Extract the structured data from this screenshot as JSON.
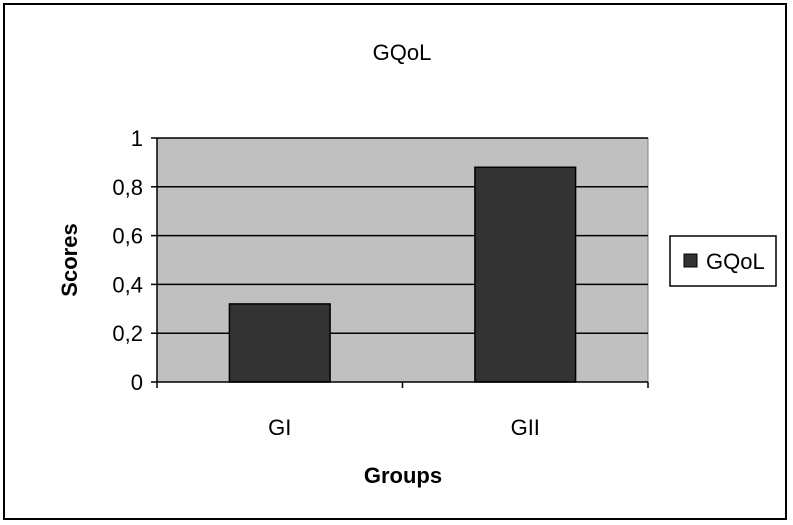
{
  "chart_data": {
    "type": "bar",
    "title": "GQoL",
    "xlabel": "Groups",
    "ylabel": "Scores",
    "categories": [
      "GI",
      "GII"
    ],
    "series": [
      {
        "name": "GQoL",
        "values": [
          0.32,
          0.88
        ],
        "color": "#333333"
      }
    ],
    "ylim": [
      0,
      1
    ],
    "yticks": [
      0,
      0.2,
      0.4,
      0.6,
      0.8,
      1
    ],
    "ytick_labels": [
      "0",
      "0,2",
      "0,4",
      "0,6",
      "0,8",
      "1"
    ],
    "grid": true,
    "plot_background": "#c0c0c0",
    "legend": {
      "position": "right",
      "entries": [
        "GQoL"
      ]
    }
  }
}
